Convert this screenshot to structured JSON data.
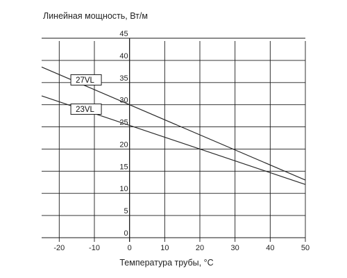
{
  "chart_data": {
    "type": "line",
    "title": "",
    "ylabel": "Линейная мощность, Вт/м",
    "xlabel": "Температура трубы, °C",
    "xlim": [
      -25,
      50
    ],
    "ylim": [
      0,
      45
    ],
    "x_ticks": [
      -20,
      -10,
      0,
      10,
      20,
      30,
      40,
      50
    ],
    "y_ticks": [
      0,
      5,
      10,
      15,
      20,
      25,
      30,
      35,
      40,
      45
    ],
    "grid": true,
    "series": [
      {
        "name": "27VL",
        "x": [
          -25,
          50
        ],
        "y": [
          38.5,
          13
        ]
      },
      {
        "name": "23VL",
        "x": [
          -25,
          50
        ],
        "y": [
          32,
          12
        ]
      }
    ]
  }
}
